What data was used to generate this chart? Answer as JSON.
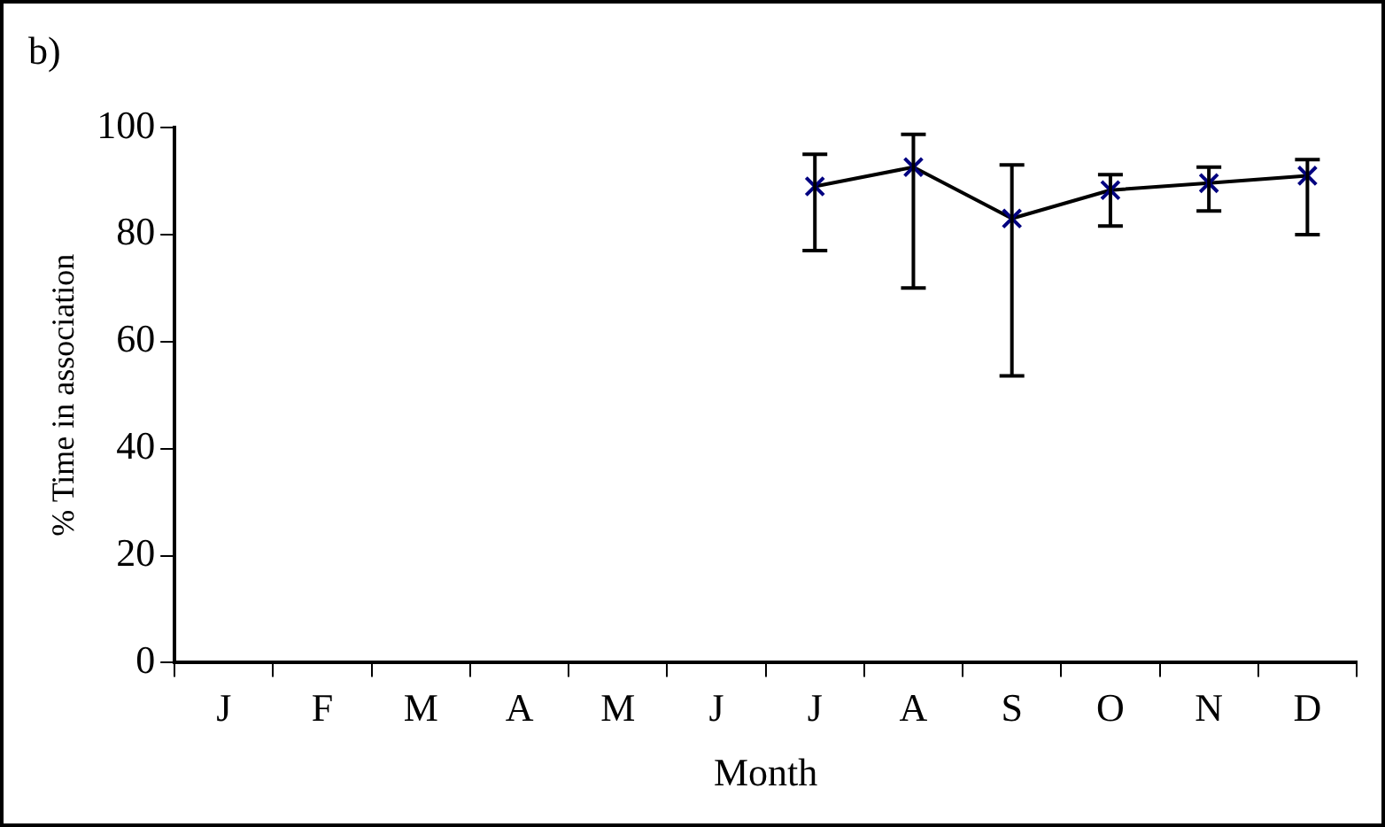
{
  "chart_data": {
    "type": "line",
    "title": "b)",
    "xlabel": "Month",
    "ylabel": "% Time in association",
    "categories": [
      "J",
      "F",
      "M",
      "A",
      "M",
      "J",
      "J",
      "A",
      "S",
      "O",
      "N",
      "D"
    ],
    "series": [
      {
        "color": "#000080",
        "values": [
          null,
          null,
          null,
          null,
          null,
          null,
          89,
          92.6,
          83,
          88.3,
          89.6,
          91
        ],
        "errors": [
          null,
          null,
          null,
          null,
          null,
          null,
          [
            77,
            95
          ],
          [
            70,
            98.7
          ],
          [
            53.6,
            93
          ],
          [
            81.6,
            91.2
          ],
          [
            84.4,
            92.6
          ],
          [
            80,
            94
          ]
        ]
      }
    ],
    "ylim": [
      0,
      100
    ],
    "yticks": [
      0,
      20,
      40,
      60,
      80,
      100
    ],
    "grid": false,
    "legend": false,
    "marker": "cross",
    "line_style": "solid"
  }
}
